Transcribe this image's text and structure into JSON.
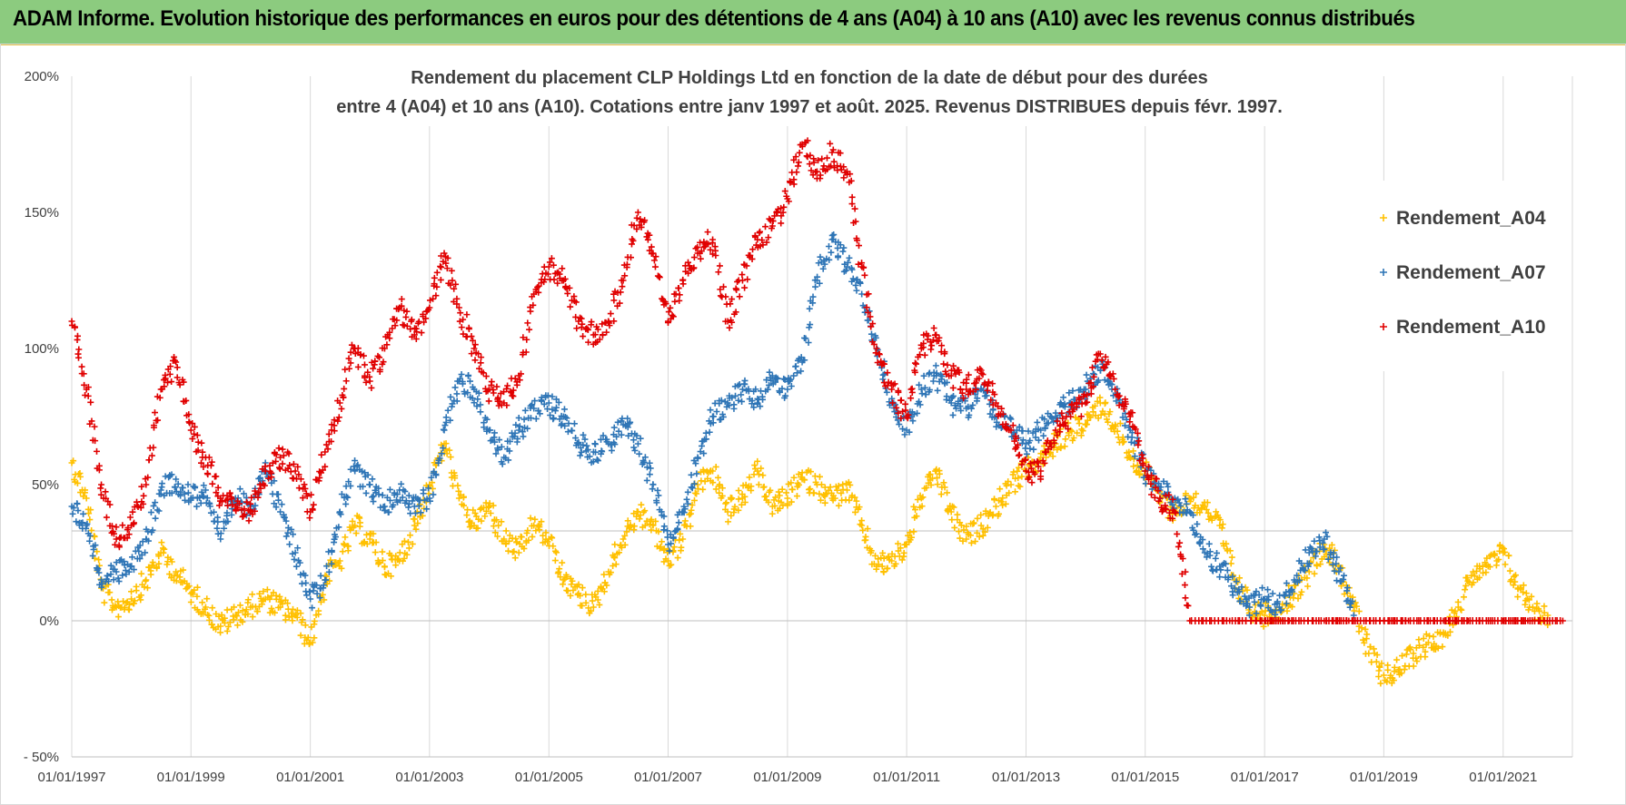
{
  "banner": {
    "title": "ADAM Informe. Evolution historique des performances en euros pour des détentions de 4 ans (A04) à 10 ans (A10) avec les revenus connus distribués"
  },
  "chart_data": {
    "type": "scatter",
    "title_line1": "Rendement du placement CLP Holdings Ltd en fonction de la date de début pour des durées",
    "title_line2": "entre 4 (A04) et 10 ans (A10). Cotations entre janv 1997 et août. 2025. Revenus DISTRIBUES depuis févr. 1997.",
    "xlabel": "",
    "ylabel": "",
    "xlim": [
      "1997-01-01",
      "2022-03-01"
    ],
    "ylim": [
      -50,
      200
    ],
    "y_ticks": [
      -50,
      0,
      50,
      100,
      150,
      200
    ],
    "y_tick_labels": [
      "- 50%",
      "0%",
      "50%",
      "100%",
      "150%",
      "200%"
    ],
    "x_ticks": [
      "1997-01-01",
      "1999-01-01",
      "2001-01-01",
      "2003-01-01",
      "2005-01-01",
      "2007-01-01",
      "2009-01-01",
      "2011-01-01",
      "2013-01-01",
      "2015-01-01",
      "2017-01-01",
      "2019-01-01",
      "2021-01-01"
    ],
    "x_tick_labels": [
      "01/01/1997",
      "01/01/1999",
      "01/01/2001",
      "01/01/2003",
      "01/01/2005",
      "01/01/2007",
      "01/01/2009",
      "01/01/2011",
      "01/01/2013",
      "01/01/2015",
      "01/01/2017",
      "01/01/2019",
      "01/01/2021"
    ],
    "grid": "vertical",
    "legend_position": "right",
    "marker": "+",
    "series": [
      {
        "name": "Rendement_A04",
        "color": "#ffc000",
        "points": [
          [
            "1997-01-01",
            58
          ],
          [
            "1997-04-01",
            45
          ],
          [
            "1997-07-01",
            12
          ],
          [
            "1997-10-01",
            5
          ],
          [
            "1998-01-01",
            8
          ],
          [
            "1998-04-01",
            15
          ],
          [
            "1998-07-01",
            25
          ],
          [
            "1998-10-01",
            18
          ],
          [
            "1999-01-01",
            10
          ],
          [
            "1999-04-01",
            5
          ],
          [
            "1999-07-01",
            -2
          ],
          [
            "1999-10-01",
            2
          ],
          [
            "2000-01-01",
            5
          ],
          [
            "2000-04-01",
            8
          ],
          [
            "2000-07-01",
            5
          ],
          [
            "2000-10-01",
            2
          ],
          [
            "2001-01-01",
            -8
          ],
          [
            "2001-04-01",
            15
          ],
          [
            "2001-07-01",
            22
          ],
          [
            "2001-10-01",
            35
          ],
          [
            "2002-01-01",
            30
          ],
          [
            "2002-04-01",
            20
          ],
          [
            "2002-07-01",
            22
          ],
          [
            "2002-10-01",
            35
          ],
          [
            "2003-01-01",
            50
          ],
          [
            "2003-04-01",
            65
          ],
          [
            "2003-07-01",
            45
          ],
          [
            "2003-10-01",
            35
          ],
          [
            "2004-01-01",
            42
          ],
          [
            "2004-04-01",
            30
          ],
          [
            "2004-07-01",
            25
          ],
          [
            "2004-10-01",
            35
          ],
          [
            "2005-01-01",
            30
          ],
          [
            "2005-04-01",
            15
          ],
          [
            "2005-07-01",
            10
          ],
          [
            "2005-10-01",
            5
          ],
          [
            "2006-01-01",
            18
          ],
          [
            "2006-04-01",
            30
          ],
          [
            "2006-07-01",
            40
          ],
          [
            "2006-10-01",
            35
          ],
          [
            "2007-01-01",
            22
          ],
          [
            "2007-04-01",
            30
          ],
          [
            "2007-07-01",
            50
          ],
          [
            "2007-10-01",
            55
          ],
          [
            "2008-01-01",
            40
          ],
          [
            "2008-04-01",
            45
          ],
          [
            "2008-07-01",
            55
          ],
          [
            "2008-10-01",
            42
          ],
          [
            "2009-01-01",
            45
          ],
          [
            "2009-04-01",
            52
          ],
          [
            "2009-07-01",
            50
          ],
          [
            "2009-10-01",
            45
          ],
          [
            "2010-01-01",
            48
          ],
          [
            "2010-04-01",
            35
          ],
          [
            "2010-07-01",
            20
          ],
          [
            "2010-10-01",
            22
          ],
          [
            "2011-01-01",
            28
          ],
          [
            "2011-04-01",
            45
          ],
          [
            "2011-07-01",
            55
          ],
          [
            "2011-10-01",
            40
          ],
          [
            "2012-01-01",
            30
          ],
          [
            "2012-04-01",
            35
          ],
          [
            "2012-07-01",
            42
          ],
          [
            "2012-10-01",
            50
          ],
          [
            "2013-01-01",
            55
          ],
          [
            "2013-04-01",
            60
          ],
          [
            "2013-07-01",
            65
          ],
          [
            "2013-10-01",
            70
          ],
          [
            "2014-01-01",
            72
          ],
          [
            "2014-04-01",
            80
          ],
          [
            "2014-07-01",
            72
          ],
          [
            "2014-10-01",
            60
          ],
          [
            "2015-01-01",
            55
          ],
          [
            "2015-04-01",
            45
          ],
          [
            "2015-07-01",
            40
          ],
          [
            "2015-10-01",
            45
          ],
          [
            "2016-01-01",
            42
          ],
          [
            "2016-04-01",
            35
          ],
          [
            "2016-07-01",
            15
          ],
          [
            "2016-10-01",
            5
          ],
          [
            "2017-01-01",
            2
          ],
          [
            "2017-04-01",
            5
          ],
          [
            "2017-07-01",
            10
          ],
          [
            "2017-10-01",
            18
          ],
          [
            "2018-01-01",
            28
          ],
          [
            "2018-04-01",
            20
          ],
          [
            "2018-07-01",
            5
          ],
          [
            "2018-10-01",
            -12
          ],
          [
            "2019-01-01",
            -20
          ],
          [
            "2019-04-01",
            -18
          ],
          [
            "2019-07-01",
            -12
          ],
          [
            "2019-10-01",
            -8
          ],
          [
            "2020-01-01",
            -5
          ],
          [
            "2020-04-01",
            5
          ],
          [
            "2020-07-01",
            18
          ],
          [
            "2020-10-01",
            20
          ],
          [
            "2021-01-01",
            25
          ],
          [
            "2021-04-01",
            12
          ],
          [
            "2021-07-01",
            5
          ],
          [
            "2021-10-01",
            2
          ]
        ]
      },
      {
        "name": "Rendement_A07",
        "color": "#2e75b6",
        "points": [
          [
            "1997-01-01",
            42
          ],
          [
            "1997-04-01",
            35
          ],
          [
            "1997-07-01",
            15
          ],
          [
            "1997-10-01",
            18
          ],
          [
            "1998-01-01",
            20
          ],
          [
            "1998-04-01",
            30
          ],
          [
            "1998-07-01",
            48
          ],
          [
            "1998-10-01",
            52
          ],
          [
            "1999-01-01",
            45
          ],
          [
            "1999-04-01",
            48
          ],
          [
            "1999-07-01",
            30
          ],
          [
            "1999-10-01",
            45
          ],
          [
            "2000-01-01",
            42
          ],
          [
            "2000-04-01",
            58
          ],
          [
            "2000-07-01",
            40
          ],
          [
            "2000-10-01",
            25
          ],
          [
            "2001-01-01",
            8
          ],
          [
            "2001-04-01",
            15
          ],
          [
            "2001-07-01",
            40
          ],
          [
            "2001-10-01",
            55
          ],
          [
            "2002-01-01",
            50
          ],
          [
            "2002-04-01",
            42
          ],
          [
            "2002-07-01",
            48
          ],
          [
            "2002-10-01",
            42
          ],
          [
            "2003-01-01",
            45
          ],
          [
            "2003-04-01",
            70
          ],
          [
            "2003-07-01",
            88
          ],
          [
            "2003-10-01",
            85
          ],
          [
            "2004-01-01",
            70
          ],
          [
            "2004-04-01",
            60
          ],
          [
            "2004-07-01",
            70
          ],
          [
            "2004-10-01",
            78
          ],
          [
            "2005-01-01",
            80
          ],
          [
            "2005-04-01",
            75
          ],
          [
            "2005-07-01",
            65
          ],
          [
            "2005-10-01",
            62
          ],
          [
            "2006-01-01",
            65
          ],
          [
            "2006-04-01",
            72
          ],
          [
            "2006-07-01",
            65
          ],
          [
            "2006-10-01",
            50
          ],
          [
            "2007-01-01",
            28
          ],
          [
            "2007-04-01",
            40
          ],
          [
            "2007-07-01",
            60
          ],
          [
            "2007-10-01",
            75
          ],
          [
            "2008-01-01",
            80
          ],
          [
            "2008-04-01",
            85
          ],
          [
            "2008-07-01",
            80
          ],
          [
            "2008-10-01",
            90
          ],
          [
            "2009-01-01",
            85
          ],
          [
            "2009-04-01",
            95
          ],
          [
            "2009-07-01",
            125
          ],
          [
            "2009-10-01",
            140
          ],
          [
            "2010-01-01",
            130
          ],
          [
            "2010-04-01",
            120
          ],
          [
            "2010-07-01",
            100
          ],
          [
            "2010-10-01",
            80
          ],
          [
            "2011-01-01",
            70
          ],
          [
            "2011-04-01",
            85
          ],
          [
            "2011-07-01",
            90
          ],
          [
            "2011-10-01",
            80
          ],
          [
            "2012-01-01",
            78
          ],
          [
            "2012-04-01",
            85
          ],
          [
            "2012-07-01",
            75
          ],
          [
            "2012-10-01",
            70
          ],
          [
            "2013-01-01",
            65
          ],
          [
            "2013-04-01",
            70
          ],
          [
            "2013-07-01",
            75
          ],
          [
            "2013-10-01",
            80
          ],
          [
            "2014-01-01",
            85
          ],
          [
            "2014-04-01",
            92
          ],
          [
            "2014-07-01",
            85
          ],
          [
            "2014-10-01",
            70
          ],
          [
            "2015-01-01",
            55
          ],
          [
            "2015-04-01",
            48
          ],
          [
            "2015-07-01",
            45
          ],
          [
            "2015-10-01",
            40
          ],
          [
            "2016-01-01",
            25
          ],
          [
            "2016-04-01",
            20
          ],
          [
            "2016-07-01",
            12
          ],
          [
            "2016-10-01",
            5
          ],
          [
            "2017-01-01",
            8
          ],
          [
            "2017-04-01",
            5
          ],
          [
            "2017-07-01",
            15
          ],
          [
            "2017-10-01",
            25
          ],
          [
            "2018-01-01",
            30
          ],
          [
            "2018-04-01",
            18
          ],
          [
            "2018-07-01",
            2
          ]
        ]
      },
      {
        "name": "Rendement_A10",
        "color": "#e00000",
        "points": [
          [
            "1997-01-01",
            110
          ],
          [
            "1997-04-01",
            85
          ],
          [
            "1997-07-01",
            50
          ],
          [
            "1997-10-01",
            30
          ],
          [
            "1998-01-01",
            35
          ],
          [
            "1998-04-01",
            50
          ],
          [
            "1998-07-01",
            85
          ],
          [
            "1998-10-01",
            95
          ],
          [
            "1999-01-01",
            70
          ],
          [
            "1999-04-01",
            60
          ],
          [
            "1999-07-01",
            45
          ],
          [
            "1999-10-01",
            42
          ],
          [
            "2000-01-01",
            40
          ],
          [
            "2000-04-01",
            55
          ],
          [
            "2000-07-01",
            60
          ],
          [
            "2000-10-01",
            55
          ],
          [
            "2001-01-01",
            40
          ],
          [
            "2001-04-01",
            62
          ],
          [
            "2001-07-01",
            80
          ],
          [
            "2001-10-01",
            100
          ],
          [
            "2002-01-01",
            88
          ],
          [
            "2002-04-01",
            100
          ],
          [
            "2002-07-01",
            115
          ],
          [
            "2002-10-01",
            105
          ],
          [
            "2003-01-01",
            115
          ],
          [
            "2003-04-01",
            135
          ],
          [
            "2003-07-01",
            115
          ],
          [
            "2003-10-01",
            100
          ],
          [
            "2004-01-01",
            85
          ],
          [
            "2004-04-01",
            80
          ],
          [
            "2004-07-01",
            90
          ],
          [
            "2004-10-01",
            120
          ],
          [
            "2005-01-01",
            130
          ],
          [
            "2005-04-01",
            125
          ],
          [
            "2005-07-01",
            110
          ],
          [
            "2005-10-01",
            105
          ],
          [
            "2006-01-01",
            110
          ],
          [
            "2006-04-01",
            125
          ],
          [
            "2006-07-01",
            150
          ],
          [
            "2006-10-01",
            135
          ],
          [
            "2007-01-01",
            110
          ],
          [
            "2007-04-01",
            125
          ],
          [
            "2007-07-01",
            135
          ],
          [
            "2007-10-01",
            140
          ],
          [
            "2008-01-01",
            110
          ],
          [
            "2008-04-01",
            125
          ],
          [
            "2008-07-01",
            140
          ],
          [
            "2008-10-01",
            145
          ],
          [
            "2009-01-01",
            155
          ],
          [
            "2009-04-01",
            175
          ],
          [
            "2009-07-01",
            165
          ],
          [
            "2009-10-01",
            172
          ],
          [
            "2010-01-01",
            165
          ],
          [
            "2010-04-01",
            130
          ],
          [
            "2010-07-01",
            100
          ],
          [
            "2010-10-01",
            85
          ],
          [
            "2011-01-01",
            75
          ],
          [
            "2011-04-01",
            100
          ],
          [
            "2011-07-01",
            105
          ],
          [
            "2011-10-01",
            90
          ],
          [
            "2012-01-01",
            85
          ],
          [
            "2012-04-01",
            92
          ],
          [
            "2012-07-01",
            80
          ],
          [
            "2012-10-01",
            70
          ],
          [
            "2013-01-01",
            55
          ],
          [
            "2013-04-01",
            55
          ],
          [
            "2013-07-01",
            70
          ],
          [
            "2013-10-01",
            75
          ],
          [
            "2014-01-01",
            80
          ],
          [
            "2014-04-01",
            98
          ],
          [
            "2014-07-01",
            85
          ],
          [
            "2014-10-01",
            75
          ],
          [
            "2015-01-01",
            55
          ],
          [
            "2015-04-01",
            45
          ],
          [
            "2015-07-01",
            40
          ],
          [
            "2015-10-01",
            0
          ],
          [
            "2016-06-01",
            0
          ],
          [
            "2017-01-01",
            0
          ],
          [
            "2017-06-01",
            0
          ],
          [
            "2018-01-01",
            0
          ],
          [
            "2018-06-01",
            0
          ],
          [
            "2019-01-01",
            0
          ],
          [
            "2019-06-01",
            0
          ],
          [
            "2020-01-01",
            0
          ],
          [
            "2020-06-01",
            0
          ],
          [
            "2021-01-01",
            0
          ],
          [
            "2021-06-01",
            0
          ],
          [
            "2022-01-01",
            0
          ]
        ]
      }
    ]
  }
}
